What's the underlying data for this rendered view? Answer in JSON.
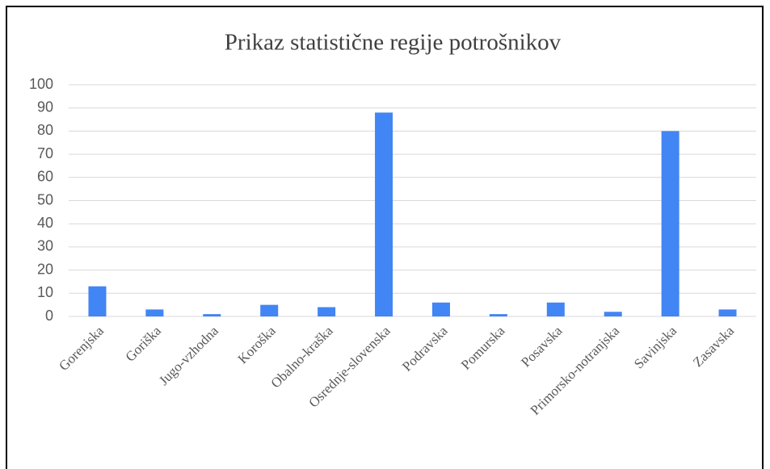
{
  "chart_data": {
    "type": "bar",
    "title": "Prikaz statistične regije potrošnikov",
    "categories": [
      "Gorenjska",
      "Goriška",
      "Jugo-vzhodna",
      "Koroška",
      "Obalno-kraška",
      "Osrednje-slovenska",
      "Podravska",
      "Pomurska",
      "Posavska",
      "Primorsko-notranjska",
      "Savinjska",
      "Zasavska"
    ],
    "values": [
      13,
      3,
      1,
      5,
      4,
      88,
      6,
      1,
      6,
      2,
      80,
      3
    ],
    "color": "#4285f4",
    "ylim": [
      0,
      100
    ],
    "yticks": [
      0,
      10,
      20,
      30,
      40,
      50,
      60,
      70,
      80,
      90,
      100
    ],
    "grid": true
  }
}
